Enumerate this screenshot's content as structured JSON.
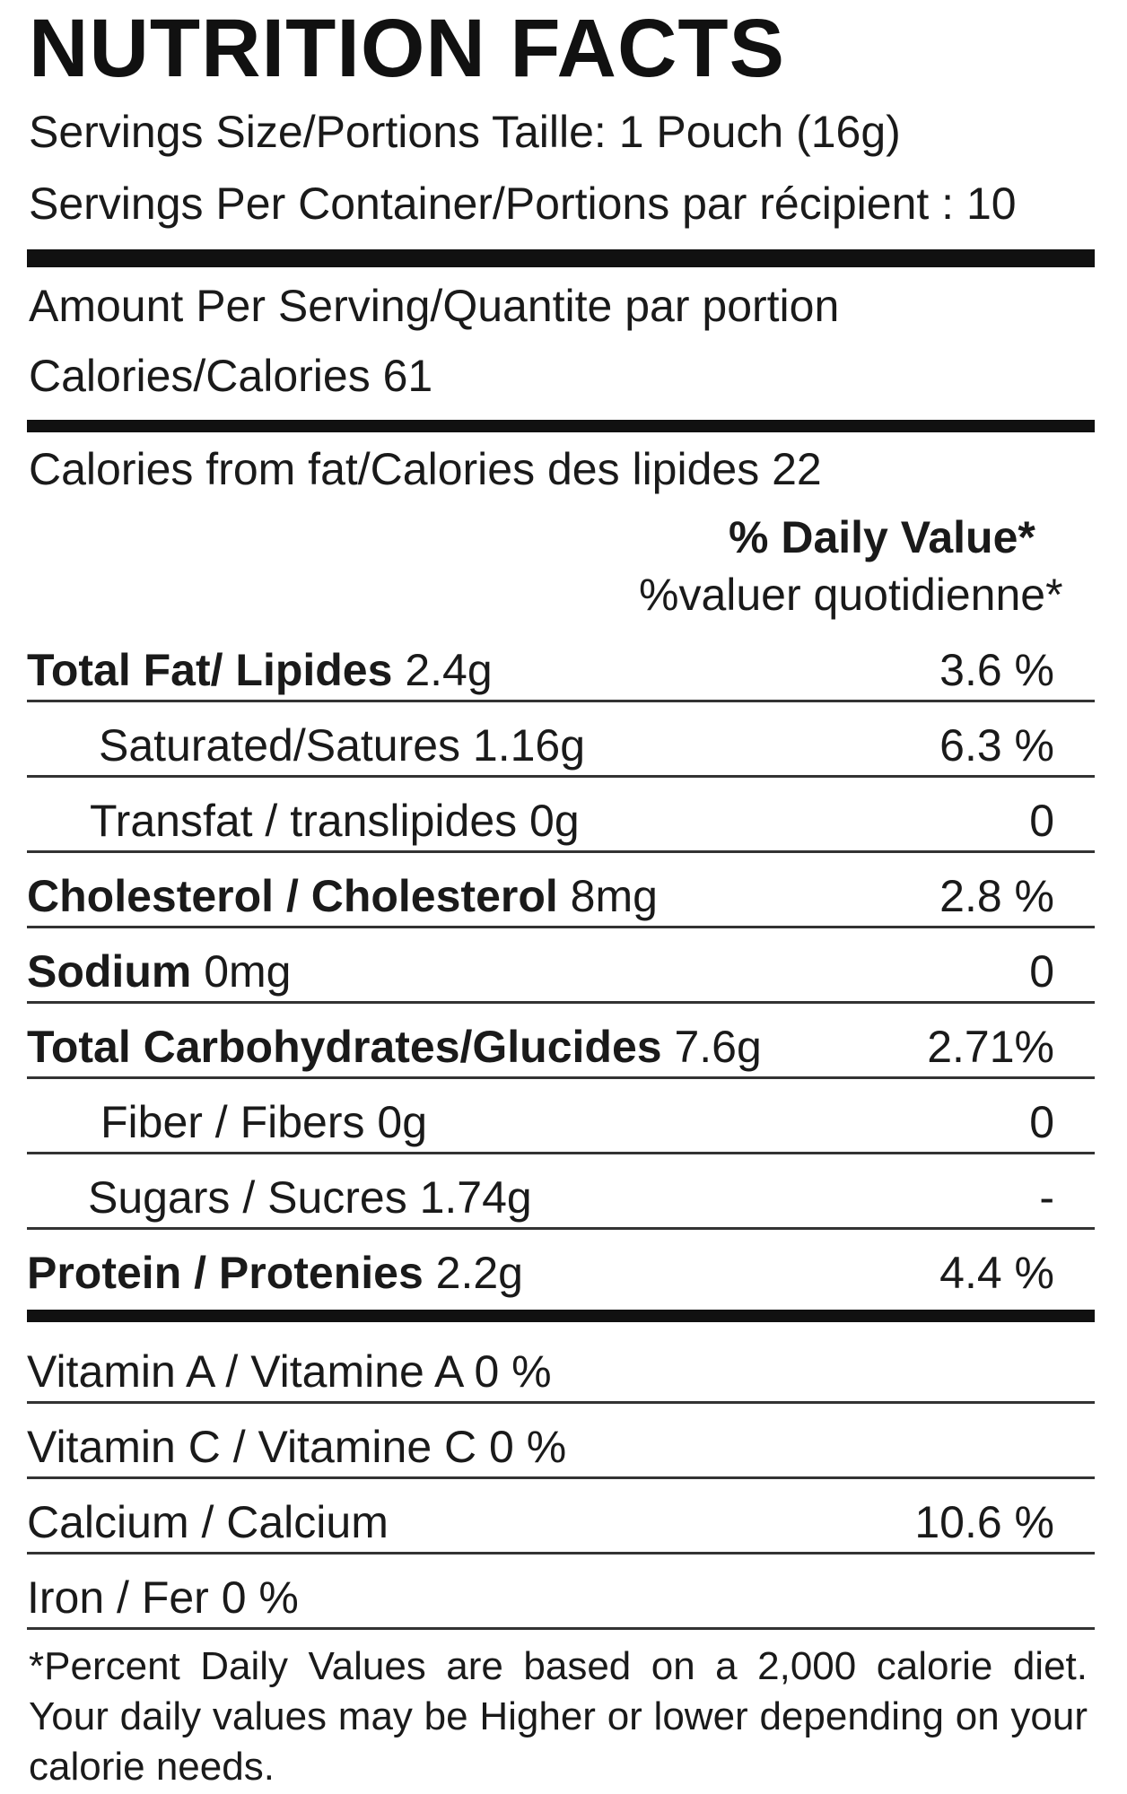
{
  "title": "NUTRITION FACTS",
  "serving_size": "Servings Size/Portions Taille: 1 Pouch (16g)",
  "servings_per_container": "Servings Per Container/Portions par récipient : 10",
  "amount_per_serving": "Amount Per Serving/Quantite par portion",
  "calories": "Calories/Calories  61",
  "calories_from_fat": "Calories from fat/Calories des lipides 22",
  "dv_header_en": "% Daily Value*",
  "dv_header_fr": "%valuer quotidienne*",
  "nutrients": [
    {
      "bold": "Total Fat/ Lipides",
      "amount": " 2.4g",
      "dv": "3.6 %"
    },
    {
      "bold": "",
      "amount": "Saturated/Satures 1.16g",
      "dv": "6.3 %"
    },
    {
      "bold": "",
      "amount": "Transfat / translipides 0g",
      "dv": "0"
    },
    {
      "bold": "Cholesterol / Cholesterol",
      "amount": " 8mg",
      "dv": "2.8 %"
    },
    {
      "bold": "Sodium",
      "amount": " 0mg",
      "dv": "0"
    },
    {
      "bold": "Total Carbohydrates/Glucides",
      "amount": " 7.6g",
      "dv": "2.71%"
    },
    {
      "bold": "",
      "amount": "Fiber / Fibers 0g",
      "dv": "0"
    },
    {
      "bold": "",
      "amount": "Sugars / Sucres 1.74g",
      "dv": "-"
    },
    {
      "bold": "Protein / Protenies",
      "amount": " 2.2g",
      "dv": "4.4 %"
    }
  ],
  "vitamins": [
    {
      "name": "Vitamin A / Vitamine A 0 %",
      "dv": ""
    },
    {
      "name": "Vitamin C / Vitamine C 0 %",
      "dv": ""
    },
    {
      "name": "Calcium / Calcium",
      "dv": "10.6 %"
    },
    {
      "name": "Iron / Fer 0 %",
      "dv": ""
    }
  ],
  "footnote": "*Percent Daily Values are based on a 2,000 calorie diet. Your daily values may be Higher or lower depending on your calorie needs."
}
